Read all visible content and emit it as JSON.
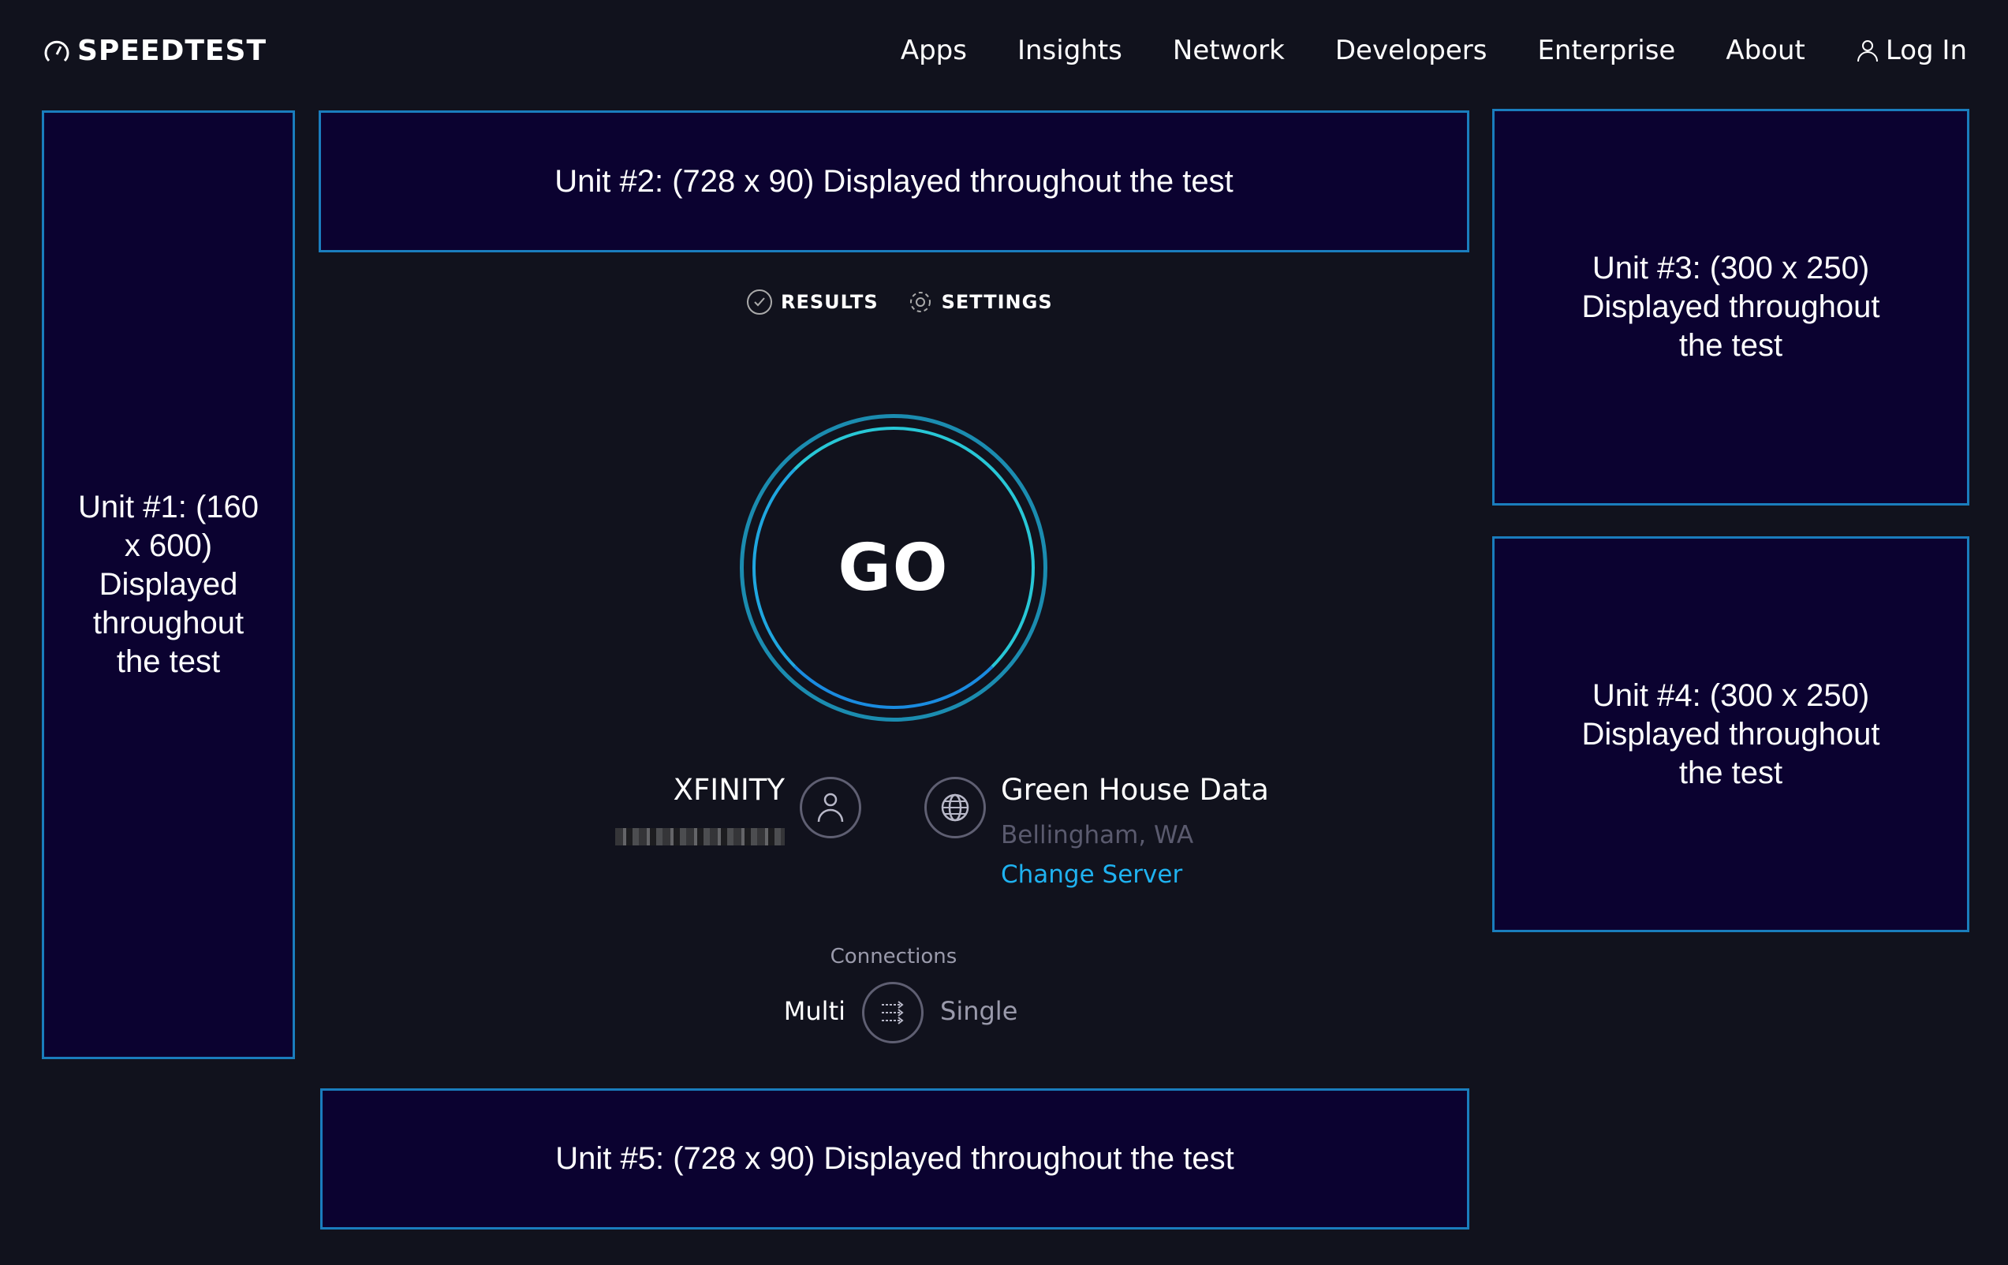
{
  "header": {
    "logo": "SPEEDTEST",
    "nav": [
      "Apps",
      "Insights",
      "Network",
      "Developers",
      "Enterprise",
      "About"
    ],
    "login": "Log In"
  },
  "ads": {
    "unit1": "Unit #1: (160 x 600) Displayed throughout the test",
    "unit2": "Unit #2: (728 x 90) Displayed throughout the test",
    "unit3": "Unit #3: (300 x 250) Displayed throughout the test",
    "unit4": "Unit #4: (300 x 250) Displayed throughout the test",
    "unit5": "Unit #5: (728 x 90) Displayed throughout the test"
  },
  "tabs": {
    "results": "RESULTS",
    "settings": "SETTINGS"
  },
  "go_label": "GO",
  "isp": {
    "name": "XFINITY"
  },
  "server": {
    "name": "Green House Data",
    "location": "Bellingham, WA",
    "change": "Change Server"
  },
  "connections": {
    "label": "Connections",
    "multi": "Multi",
    "single": "Single",
    "selected": "Multi"
  },
  "colors": {
    "background": "#11121d",
    "ad_border": "#1a7dbd",
    "ad_fill": "#0b0230",
    "link": "#1fb2f0"
  }
}
